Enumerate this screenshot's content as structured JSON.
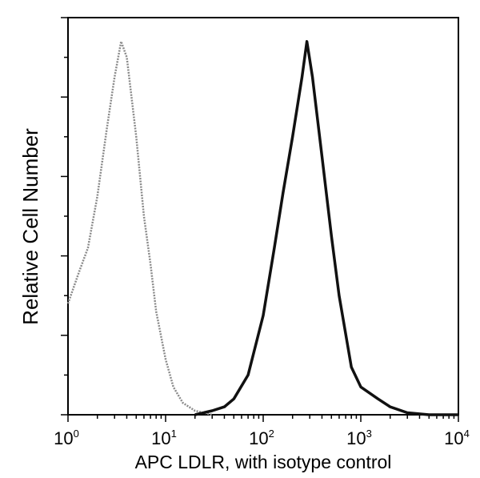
{
  "chart_data": {
    "type": "line",
    "title": "",
    "xlabel": "APC LDLR, with isotype control",
    "ylabel": "Relative Cell Number",
    "xscale": "log",
    "xlim": [
      1,
      10000
    ],
    "ylim": [
      0,
      100
    ],
    "x_tick_labels": [
      {
        "base": "10",
        "exp": "0"
      },
      {
        "base": "10",
        "exp": "1"
      },
      {
        "base": "10",
        "exp": "2"
      },
      {
        "base": "10",
        "exp": "3"
      },
      {
        "base": "10",
        "exp": "4"
      }
    ],
    "grid": false,
    "legend": "none",
    "series": [
      {
        "role": "isotype control",
        "color": "#8a8a8a",
        "x": [
          1.0,
          1.3,
          1.6,
          2.0,
          2.5,
          3.0,
          3.5,
          4.0,
          5,
          6,
          7,
          8,
          10,
          12,
          15,
          20,
          30
        ],
        "y": [
          28,
          36,
          42,
          55,
          72,
          85,
          94,
          90,
          70,
          50,
          38,
          26,
          14,
          7,
          3,
          1,
          0
        ]
      },
      {
        "role": "LDLR",
        "color": "#111111",
        "x": [
          20,
          30,
          40,
          50,
          70,
          100,
          130,
          160,
          200,
          250,
          280,
          320,
          400,
          500,
          600,
          800,
          1000,
          1500,
          2000,
          3000,
          5000,
          10000
        ],
        "y": [
          0,
          1,
          2,
          4,
          10,
          25,
          42,
          56,
          70,
          85,
          94,
          85,
          65,
          45,
          30,
          12,
          7,
          4,
          2,
          0.5,
          0,
          0
        ]
      }
    ]
  }
}
